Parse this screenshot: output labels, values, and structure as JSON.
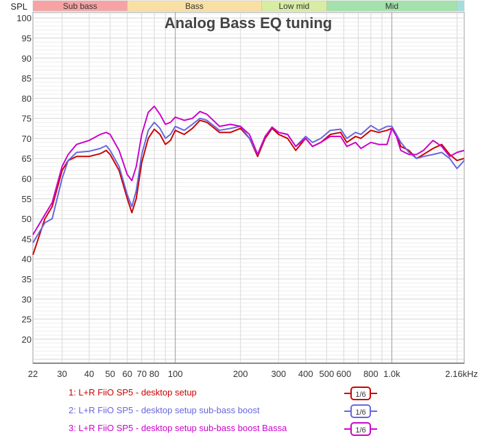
{
  "chart_data": {
    "type": "line",
    "title": "Analog Bass EQ tuning",
    "ylabel": "SPL",
    "xlabel": "",
    "xscale": "log",
    "xlim": [
      22,
      2160
    ],
    "ylim": [
      14,
      101.4
    ],
    "grid": true,
    "y_ticks": [
      20,
      25,
      30,
      35,
      40,
      45,
      50,
      55,
      60,
      65,
      70,
      75,
      80,
      85,
      90,
      95,
      100
    ],
    "x_ticks": [
      {
        "v": 22,
        "label": "22"
      },
      {
        "v": 30,
        "label": "30"
      },
      {
        "v": 40,
        "label": "40"
      },
      {
        "v": 50,
        "label": "50"
      },
      {
        "v": 60,
        "label": "60"
      },
      {
        "v": 70,
        "label": "70"
      },
      {
        "v": 80,
        "label": "80"
      },
      {
        "v": 100,
        "label": "100"
      },
      {
        "v": 200,
        "label": "200"
      },
      {
        "v": 300,
        "label": "300"
      },
      {
        "v": 400,
        "label": "400"
      },
      {
        "v": 500,
        "label": "500"
      },
      {
        "v": 600,
        "label": "600"
      },
      {
        "v": 800,
        "label": "800"
      },
      {
        "v": 1000,
        "label": "1.0k"
      },
      {
        "v": 2160,
        "label": "2.16kHz"
      }
    ],
    "bands": [
      {
        "label": "Sub bass",
        "from": 20,
        "to": 60,
        "color": "#f7a3a3"
      },
      {
        "label": "Bass",
        "from": 60,
        "to": 250,
        "color": "#f9e0a2"
      },
      {
        "label": "Low mid",
        "from": 250,
        "to": 500,
        "color": "#d8eca2"
      },
      {
        "label": "Mid",
        "from": 500,
        "to": 2000,
        "color": "#a3e2ab"
      },
      {
        "label": "",
        "from": 2000,
        "to": 2160,
        "color": "#a3dede"
      }
    ],
    "x": [
      22,
      25,
      27,
      30,
      32,
      35,
      40,
      45,
      48,
      50,
      55,
      60,
      63,
      66,
      70,
      75,
      80,
      85,
      90,
      95,
      100,
      110,
      120,
      130,
      140,
      160,
      180,
      200,
      220,
      240,
      260,
      280,
      300,
      330,
      360,
      400,
      430,
      470,
      520,
      580,
      620,
      680,
      720,
      800,
      870,
      950,
      1000,
      1050,
      1100,
      1200,
      1300,
      1400,
      1550,
      1700,
      1850,
      2000,
      2160
    ],
    "series": [
      {
        "name": "1: L+R FiiO SP5 - desktop setup",
        "color": "#cc0000",
        "smoothing": "1/6",
        "values": [
          41,
          50,
          53,
          62,
          64.5,
          65.5,
          65.5,
          66.2,
          67,
          66,
          62,
          55,
          51.5,
          55,
          64,
          70,
          72.3,
          71,
          68.5,
          69.5,
          72,
          71,
          72.5,
          74.5,
          74,
          71.5,
          71.5,
          72.5,
          70,
          65.5,
          70,
          72.5,
          71,
          70,
          67,
          70,
          68,
          69,
          71,
          71.5,
          69,
          70.5,
          70,
          72,
          71.5,
          72,
          72.5,
          71,
          68,
          67,
          65,
          66,
          67.5,
          68.5,
          66,
          64.5,
          65
        ]
      },
      {
        "name": "2: L+R FiiO SP5 - desktop setup sub-bass boost",
        "color": "#6666dd",
        "smoothing": "1/6",
        "values": [
          44,
          49,
          50,
          60,
          64.5,
          66.5,
          66.8,
          67.5,
          68.2,
          67,
          63,
          56,
          53,
          57,
          66,
          72,
          74,
          72.5,
          70,
          71,
          73,
          72,
          73.5,
          75,
          74.5,
          72,
          72.5,
          73,
          70,
          66,
          70.5,
          72.8,
          71.5,
          71,
          68,
          70.5,
          69,
          70,
          72,
          72.3,
          70,
          71.5,
          71,
          73.2,
          72,
          73,
          73,
          71,
          69,
          66.5,
          65,
          65.5,
          66,
          66.5,
          65,
          62.5,
          64.5
        ]
      },
      {
        "name": "3: L+R FiiO SP5 - desktop setup sub-bass boost Bassa",
        "color": "#cc00cc",
        "smoothing": "1/6",
        "values": [
          46,
          51,
          54,
          63,
          66,
          68.5,
          69.5,
          71,
          71.5,
          71,
          67,
          61,
          59.5,
          63,
          71,
          76.5,
          78,
          76,
          73.5,
          74,
          75.3,
          74.5,
          75,
          76.7,
          76,
          73,
          73.5,
          73,
          71,
          66,
          70.5,
          72.8,
          71.5,
          71,
          68,
          70,
          68,
          69,
          70.5,
          70.5,
          68,
          69,
          67.5,
          69,
          68.5,
          68.5,
          72.5,
          70.5,
          67,
          66,
          66,
          67,
          69.5,
          68,
          65.5,
          66.5,
          67
        ]
      }
    ]
  }
}
